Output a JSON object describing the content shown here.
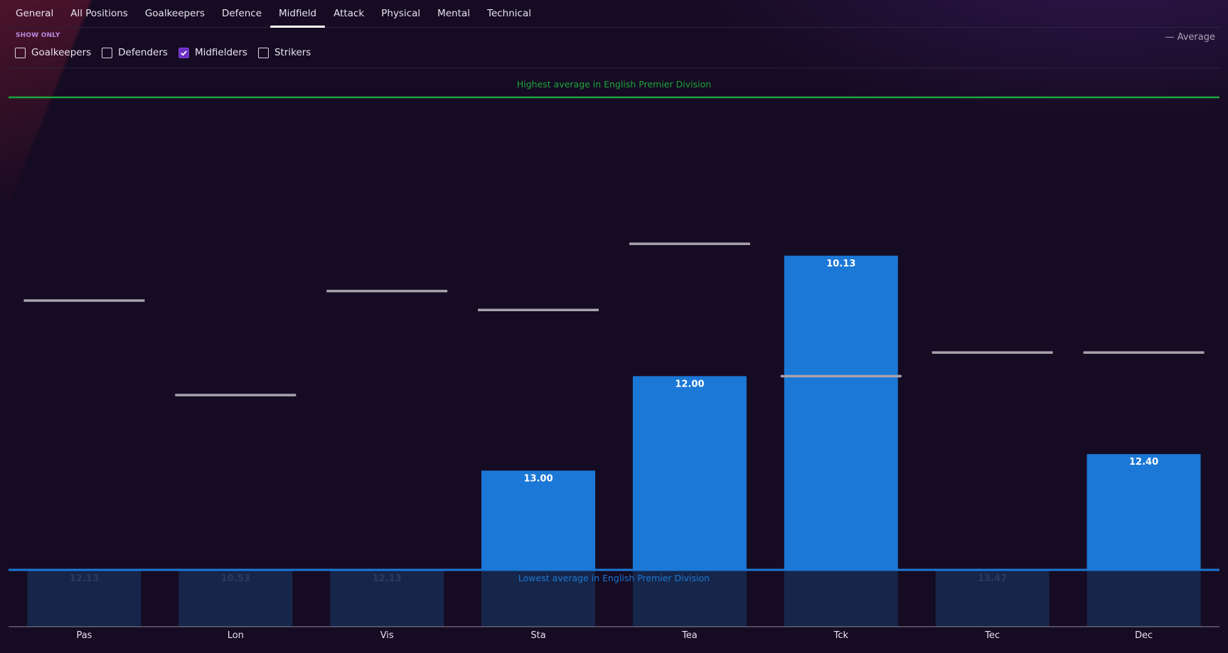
{
  "tabs": [
    {
      "label": "General",
      "active": false
    },
    {
      "label": "All Positions",
      "active": false
    },
    {
      "label": "Goalkeepers",
      "active": false
    },
    {
      "label": "Defence",
      "active": false
    },
    {
      "label": "Midfield",
      "active": true
    },
    {
      "label": "Attack",
      "active": false
    },
    {
      "label": "Physical",
      "active": false
    },
    {
      "label": "Mental",
      "active": false
    },
    {
      "label": "Technical",
      "active": false
    }
  ],
  "filters": {
    "show_only_label": "SHOW ONLY",
    "items": [
      {
        "label": "Goalkeepers",
        "checked": false
      },
      {
        "label": "Defenders",
        "checked": false
      },
      {
        "label": "Midfielders",
        "checked": true
      },
      {
        "label": "Strikers",
        "checked": false
      }
    ]
  },
  "legend": {
    "average_label": "— Average"
  },
  "colors": {
    "bar": "#1b78d6",
    "low_bar": "#16264a",
    "average_marker": "#a7a3ad",
    "highest_line": "#1ea33a",
    "lowest_line": "#1b78d6"
  },
  "chart_data": {
    "type": "bar",
    "categories": [
      "Pas",
      "Lon",
      "Vis",
      "Sta",
      "Tea",
      "Tck",
      "Tec",
      "Dec"
    ],
    "labels": [
      "12.13",
      "10.53",
      "12.13",
      "13.00",
      "12.00",
      "10.13",
      "13.47",
      "12.40"
    ],
    "bar_level": [
      0,
      0,
      0,
      0.21,
      0.41,
      0.665,
      0,
      0.245
    ],
    "average_level": [
      0.57,
      0.37,
      0.59,
      0.55,
      0.69,
      0.41,
      0.46,
      0.46
    ],
    "highest_label": "Highest average in English Premier Division",
    "lowest_label": "Lowest average in English Premier Division"
  }
}
